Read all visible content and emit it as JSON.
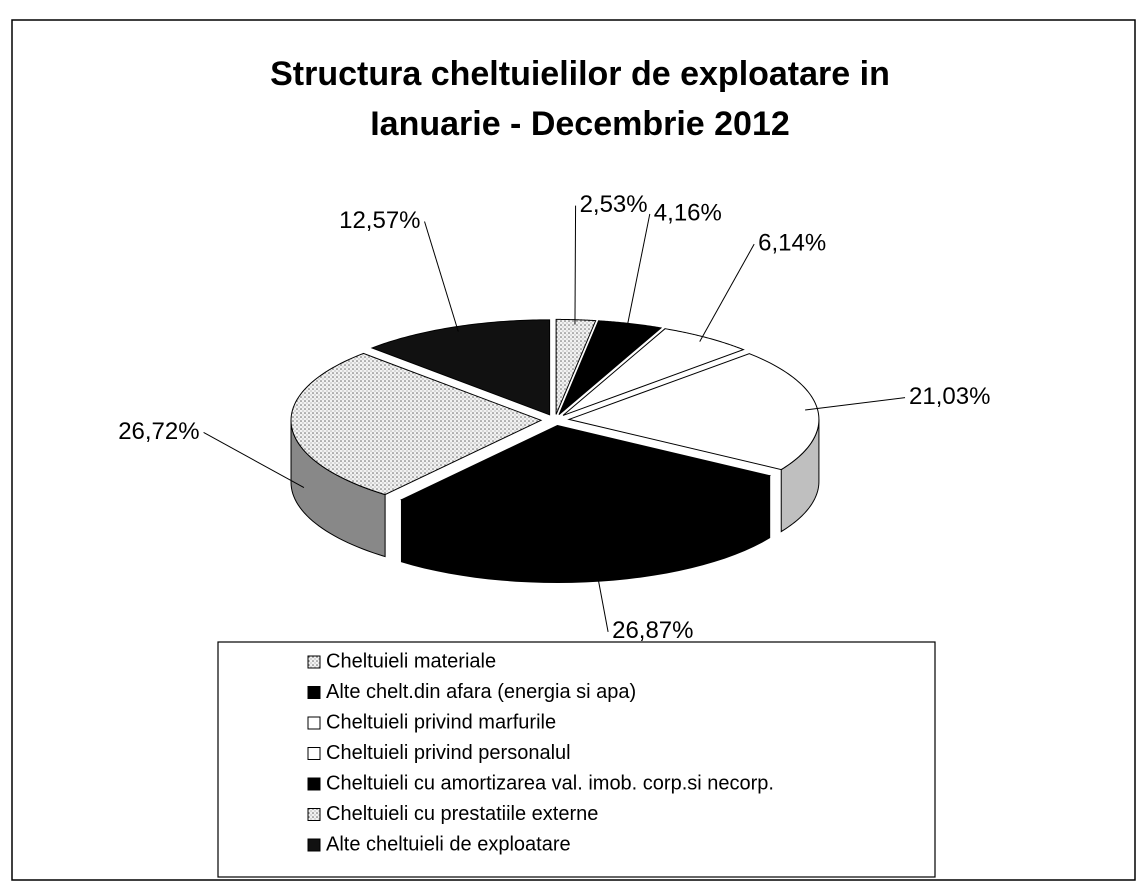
{
  "chart_data": {
    "type": "pie",
    "title": "Structura cheltuielilor de exploatare in Ianuarie - Decembrie 2012",
    "categories": [
      "Cheltuieli materiale",
      "Alte chelt.din afara (energia si apa)",
      "Cheltuieli privind marfurile",
      "Cheltuieli privind personalul",
      "Cheltuieli cu amortizarea val. imob. corp.si necorp.",
      "Cheltuieli cu prestatiile externe",
      "Alte cheltuieli de exploatare"
    ],
    "values": [
      2.53,
      4.16,
      6.14,
      21.03,
      26.87,
      26.72,
      12.57
    ],
    "value_labels": [
      "2,53%",
      "4,16%",
      "6,14%",
      "21,03%",
      "26,87%",
      "26,72%",
      "12,57%"
    ],
    "colors": [
      "dots-light",
      "#000000",
      "#ffffff",
      "#ffffff",
      "#000000",
      "dots-light",
      "#111111"
    ],
    "legend": "bottom"
  }
}
